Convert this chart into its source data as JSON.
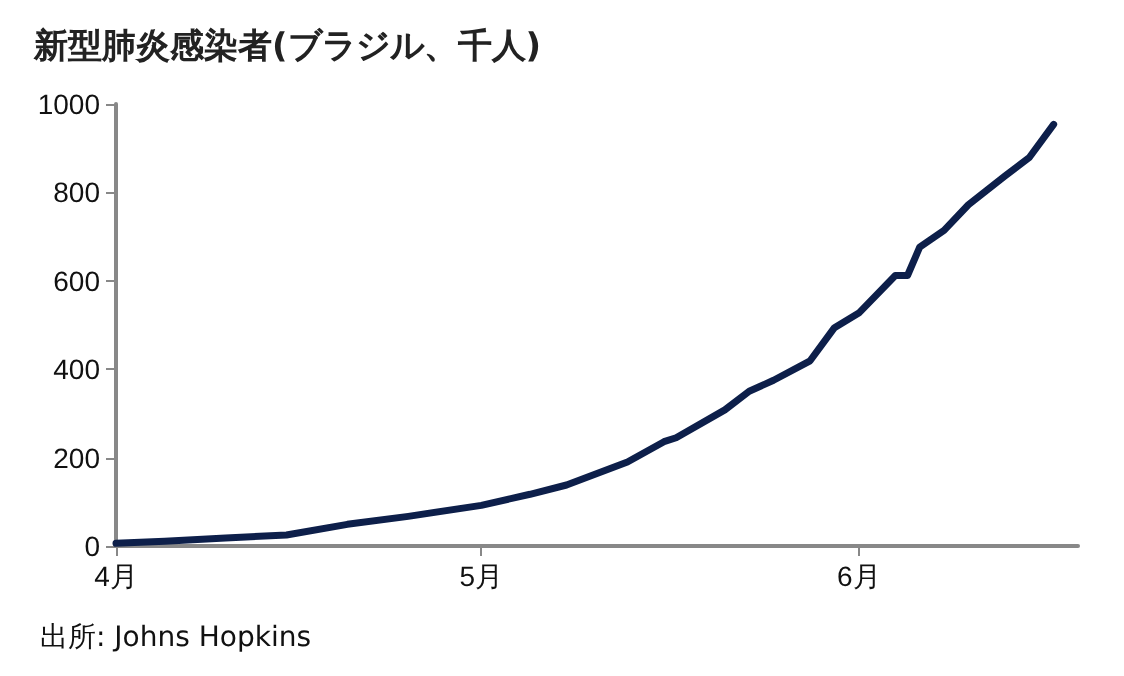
{
  "chart_data": {
    "type": "line",
    "title": "新型肺炎感染者(ブラジル、千人)",
    "annotations": [
      "出所: Johns Hopkins"
    ],
    "x": [
      "--04-01",
      "--04-05",
      "--04-10",
      "--04-15",
      "--04-20",
      "--04-25",
      "--05-01",
      "--05-05",
      "--05-08",
      "--05-13",
      "--05-16",
      "--05-17",
      "--05-21",
      "--05-23",
      "--05-25",
      "--05-28",
      "--05-30",
      "--06-01",
      "--06-04",
      "--06-05",
      "--06-06",
      "--06-08",
      "--06-10",
      "--06-13",
      "--06-15",
      "--06-17"
    ],
    "series": [
      {
        "color": "#0d1f4a",
        "values": [
          6,
          11,
          18,
          25,
          49,
          67,
          92,
          117,
          138,
          190,
          236,
          245,
          308,
          350,
          375,
          419,
          494,
          527,
          612,
          612,
          676,
          714,
          772,
          837,
          879,
          954
        ]
      }
    ],
    "xlim": [
      "--04-01",
      "--06-19"
    ],
    "xticks": [
      {
        "value": "--04-01",
        "label": "4月"
      },
      {
        "value": "--05-01",
        "label": "5月"
      },
      {
        "value": "--06-01",
        "label": "6月"
      }
    ],
    "ylim": [
      0,
      1000
    ],
    "yticks": [
      0,
      200,
      400,
      600,
      800,
      1000
    ],
    "grid": false,
    "marker": "none",
    "line_style": "solid"
  }
}
